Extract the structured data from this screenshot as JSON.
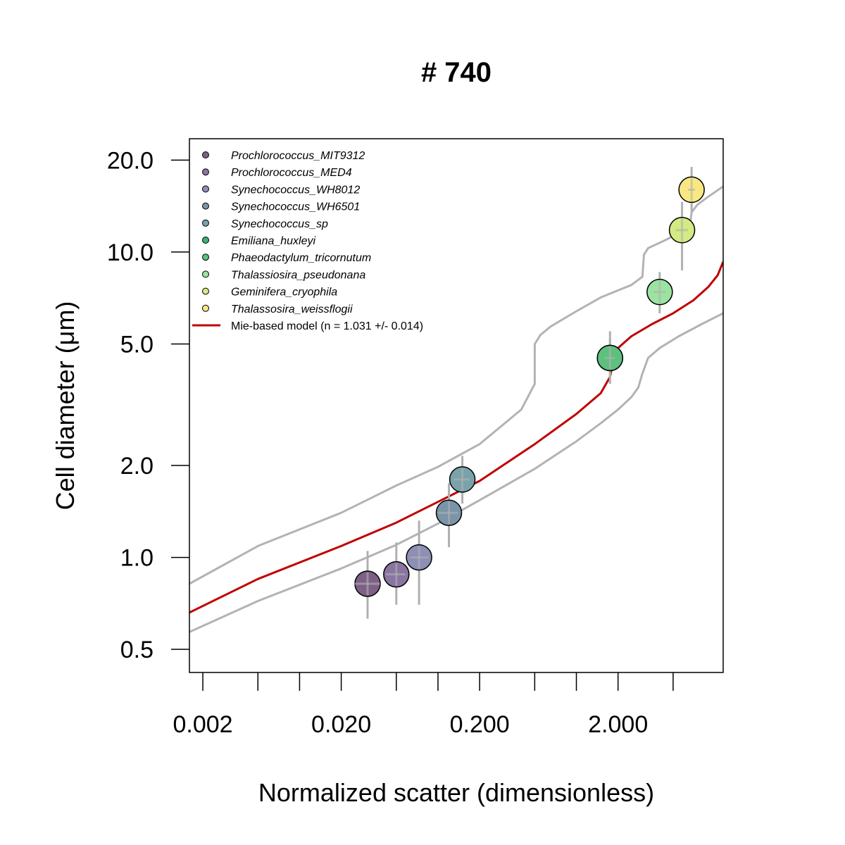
{
  "chart_data": {
    "type": "scatter",
    "title": "# 740",
    "xlabel": "Normalized scatter (dimensionless)",
    "ylabel": "Cell diameter (μm)",
    "x_scale": "log",
    "y_scale": "log",
    "xlim": [
      0.0016,
      11.5
    ],
    "ylim": [
      0.42,
      23.5
    ],
    "x_ticks": [
      0.002,
      0.005,
      0.01,
      0.02,
      0.05,
      0.1,
      0.2,
      0.5,
      1,
      2,
      5
    ],
    "x_tick_labels": [
      {
        "value": 0.002,
        "label": "0.002"
      },
      {
        "value": 0.02,
        "label": "0.020"
      },
      {
        "value": 0.2,
        "label": "0.200"
      },
      {
        "value": 2,
        "label": "2.000"
      }
    ],
    "y_ticks": [
      {
        "value": 0.5,
        "label": "0.5"
      },
      {
        "value": 1,
        "label": "1.0"
      },
      {
        "value": 2,
        "label": "2.0"
      },
      {
        "value": 5,
        "label": "5.0"
      },
      {
        "value": 10,
        "label": "10.0"
      },
      {
        "value": 20,
        "label": "20.0"
      }
    ],
    "legend_position": "top-left",
    "series": [
      {
        "name": "Prochlorococcus_MIT9312",
        "color": "#7e5f86",
        "x": 0.031,
        "y": 0.82,
        "y_err": [
          0.63,
          1.05
        ],
        "x_err": [
          0.025,
          0.038
        ]
      },
      {
        "name": "Prochlorococcus_MED4",
        "color": "#8a74a0",
        "x": 0.05,
        "y": 0.88,
        "y_err": [
          0.7,
          1.12
        ],
        "x_err": [
          0.042,
          0.058
        ]
      },
      {
        "name": "Synechococcus_WH8012",
        "color": "#8d8fb6",
        "x": 0.073,
        "y": 1.0,
        "y_err": [
          0.7,
          1.32
        ],
        "x_err": [
          0.063,
          0.085
        ]
      },
      {
        "name": "Synechococcus_WH6501",
        "color": "#7a94a8",
        "x": 0.12,
        "y": 1.4,
        "y_err": [
          1.08,
          1.75
        ],
        "x_err": [
          0.1,
          0.14
        ]
      },
      {
        "name": "Synechococcus_sp",
        "color": "#7aa2ab",
        "x": 0.15,
        "y": 1.8,
        "y_err": [
          1.5,
          2.15
        ],
        "x_err": [
          0.13,
          0.17
        ]
      },
      {
        "name": "Emiliana_huxleyi",
        "color": "#3bb07e",
        "x": 1.75,
        "y": 4.5,
        "y_err": [
          3.7,
          5.5
        ],
        "x_err": [
          1.6,
          1.9
        ]
      },
      {
        "name": "Phaeodactylum_tricornutum",
        "color": "#5ec07f",
        "x": 1.75,
        "y": 4.5,
        "y_err": [
          3.9,
          5.2
        ],
        "x_err": [
          1.6,
          1.9
        ]
      },
      {
        "name": "Thalassiosira_pseudonana",
        "color": "#9be3a0",
        "x": 4.0,
        "y": 7.4,
        "y_err": [
          6.3,
          8.6
        ],
        "x_err": [
          3.6,
          4.4
        ]
      },
      {
        "name": "Geminifera_cryophila",
        "color": "#d4ea83",
        "x": 5.8,
        "y": 11.8,
        "y_err": [
          8.7,
          14.6
        ],
        "x_err": [
          5.2,
          6.4
        ]
      },
      {
        "name": "Thalassosira_weissflogii",
        "color": "#f9e881",
        "x": 6.8,
        "y": 16.0,
        "y_err": [
          13.5,
          19.0
        ],
        "x_err": [
          6.4,
          7.2
        ]
      }
    ],
    "model": {
      "name": "Mie-based model (n = 1.031 +/- 0.014)",
      "color": "#c00000",
      "x": [
        0.0016,
        0.005,
        0.02,
        0.05,
        0.1,
        0.2,
        0.5,
        1.0,
        1.5,
        1.75,
        1.85,
        2.0,
        2.5,
        3.5,
        5.0,
        7.0,
        9.0,
        10.5,
        11.5
      ],
      "y": [
        0.66,
        0.85,
        1.09,
        1.3,
        1.52,
        1.78,
        2.35,
        2.95,
        3.45,
        3.9,
        4.4,
        4.85,
        5.3,
        5.8,
        6.3,
        6.95,
        7.7,
        8.4,
        9.3
      ]
    },
    "model_upper": {
      "color": "#b3b3b3",
      "x": [
        0.0016,
        0.005,
        0.02,
        0.05,
        0.1,
        0.2,
        0.4,
        0.5,
        0.5,
        0.55,
        0.65,
        1.0,
        1.5,
        2.5,
        3.0,
        3.08,
        3.3,
        4.5,
        6.0,
        6.6,
        6.8,
        7.5,
        9.0,
        11.5
      ],
      "y": [
        0.82,
        1.09,
        1.4,
        1.72,
        1.98,
        2.35,
        3.05,
        3.7,
        5.0,
        5.35,
        5.7,
        6.4,
        7.1,
        7.8,
        8.3,
        9.8,
        10.3,
        11.0,
        11.8,
        12.2,
        13.5,
        14.3,
        15.2,
        16.4
      ]
    },
    "model_lower": {
      "color": "#b3b3b3",
      "x": [
        0.0016,
        0.005,
        0.02,
        0.05,
        0.1,
        0.2,
        0.5,
        1.0,
        1.5,
        2.0,
        2.5,
        2.8,
        3.0,
        3.3,
        4.0,
        5.5,
        8.0,
        11.5
      ],
      "y": [
        0.57,
        0.72,
        0.92,
        1.1,
        1.29,
        1.54,
        1.95,
        2.4,
        2.75,
        3.05,
        3.35,
        3.6,
        4.0,
        4.5,
        4.85,
        5.3,
        5.8,
        6.3
      ]
    }
  }
}
